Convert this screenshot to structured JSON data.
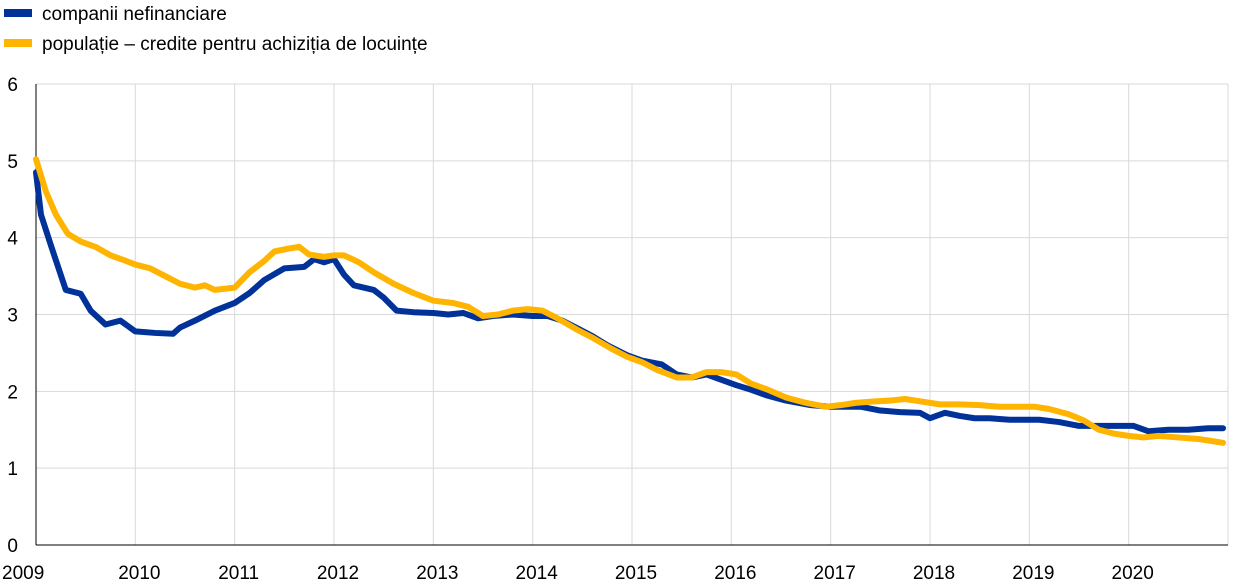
{
  "chart_data": {
    "type": "line",
    "title": "",
    "xlabel": "",
    "ylabel": "",
    "xlim": [
      2009.0,
      2021.0
    ],
    "ylim": [
      0,
      6
    ],
    "grid": true,
    "legend_position": "top-left",
    "x_ticks": [
      {
        "value": 2009,
        "label": "2009"
      },
      {
        "value": 2010,
        "label": "2010"
      },
      {
        "value": 2011,
        "label": "2011"
      },
      {
        "value": 2012,
        "label": "2012"
      },
      {
        "value": 2013,
        "label": "2013"
      },
      {
        "value": 2014,
        "label": "2014"
      },
      {
        "value": 2015,
        "label": "2015"
      },
      {
        "value": 2016,
        "label": "2016"
      },
      {
        "value": 2017,
        "label": "2017"
      },
      {
        "value": 2018,
        "label": "2018"
      },
      {
        "value": 2019,
        "label": "2019"
      },
      {
        "value": 2020,
        "label": "2020"
      }
    ],
    "y_ticks": [
      {
        "value": 0,
        "label": "0"
      },
      {
        "value": 1,
        "label": "1"
      },
      {
        "value": 2,
        "label": "2"
      },
      {
        "value": 3,
        "label": "3"
      },
      {
        "value": 4,
        "label": "4"
      },
      {
        "value": 5,
        "label": "5"
      },
      {
        "value": 6,
        "label": "6"
      }
    ],
    "series": [
      {
        "name": "companii nefinanciare",
        "color": "#003299",
        "points": [
          [
            2009.0,
            4.85
          ],
          [
            2009.05,
            4.3
          ],
          [
            2009.15,
            3.9
          ],
          [
            2009.3,
            3.32
          ],
          [
            2009.45,
            3.27
          ],
          [
            2009.55,
            3.05
          ],
          [
            2009.7,
            2.87
          ],
          [
            2009.85,
            2.92
          ],
          [
            2010.0,
            2.78
          ],
          [
            2010.2,
            2.76
          ],
          [
            2010.38,
            2.75
          ],
          [
            2010.45,
            2.83
          ],
          [
            2010.6,
            2.92
          ],
          [
            2010.8,
            3.05
          ],
          [
            2011.0,
            3.15
          ],
          [
            2011.15,
            3.28
          ],
          [
            2011.3,
            3.45
          ],
          [
            2011.5,
            3.6
          ],
          [
            2011.7,
            3.62
          ],
          [
            2011.8,
            3.72
          ],
          [
            2011.9,
            3.68
          ],
          [
            2012.0,
            3.72
          ],
          [
            2012.1,
            3.52
          ],
          [
            2012.2,
            3.38
          ],
          [
            2012.4,
            3.32
          ],
          [
            2012.5,
            3.22
          ],
          [
            2012.63,
            3.05
          ],
          [
            2012.8,
            3.03
          ],
          [
            2013.0,
            3.02
          ],
          [
            2013.15,
            3.0
          ],
          [
            2013.3,
            3.02
          ],
          [
            2013.45,
            2.95
          ],
          [
            2013.6,
            2.98
          ],
          [
            2013.8,
            3.0
          ],
          [
            2014.0,
            2.98
          ],
          [
            2014.15,
            2.98
          ],
          [
            2014.3,
            2.92
          ],
          [
            2014.45,
            2.82
          ],
          [
            2014.6,
            2.72
          ],
          [
            2014.75,
            2.6
          ],
          [
            2014.95,
            2.47
          ],
          [
            2015.1,
            2.4
          ],
          [
            2015.3,
            2.35
          ],
          [
            2015.45,
            2.22
          ],
          [
            2015.6,
            2.18
          ],
          [
            2015.75,
            2.22
          ],
          [
            2015.9,
            2.15
          ],
          [
            2016.05,
            2.08
          ],
          [
            2016.2,
            2.02
          ],
          [
            2016.35,
            1.95
          ],
          [
            2016.55,
            1.88
          ],
          [
            2016.8,
            1.82
          ],
          [
            2017.0,
            1.8
          ],
          [
            2017.15,
            1.8
          ],
          [
            2017.3,
            1.8
          ],
          [
            2017.5,
            1.75
          ],
          [
            2017.7,
            1.73
          ],
          [
            2017.9,
            1.72
          ],
          [
            2018.0,
            1.65
          ],
          [
            2018.15,
            1.72
          ],
          [
            2018.3,
            1.68
          ],
          [
            2018.45,
            1.65
          ],
          [
            2018.6,
            1.65
          ],
          [
            2018.8,
            1.63
          ],
          [
            2018.95,
            1.63
          ],
          [
            2019.1,
            1.63
          ],
          [
            2019.3,
            1.6
          ],
          [
            2019.5,
            1.55
          ],
          [
            2019.7,
            1.55
          ],
          [
            2019.9,
            1.55
          ],
          [
            2020.05,
            1.55
          ],
          [
            2020.2,
            1.48
          ],
          [
            2020.4,
            1.5
          ],
          [
            2020.6,
            1.5
          ],
          [
            2020.8,
            1.52
          ],
          [
            2020.95,
            1.52
          ]
        ]
      },
      {
        "name": "populație – credite pentru achiziția de locuințe",
        "color": "#ffb400",
        "points": [
          [
            2009.0,
            5.02
          ],
          [
            2009.1,
            4.6
          ],
          [
            2009.2,
            4.3
          ],
          [
            2009.32,
            4.05
          ],
          [
            2009.45,
            3.95
          ],
          [
            2009.6,
            3.88
          ],
          [
            2009.75,
            3.77
          ],
          [
            2009.9,
            3.7
          ],
          [
            2010.0,
            3.65
          ],
          [
            2010.15,
            3.6
          ],
          [
            2010.3,
            3.5
          ],
          [
            2010.45,
            3.4
          ],
          [
            2010.6,
            3.35
          ],
          [
            2010.7,
            3.38
          ],
          [
            2010.8,
            3.32
          ],
          [
            2011.0,
            3.35
          ],
          [
            2011.15,
            3.55
          ],
          [
            2011.3,
            3.7
          ],
          [
            2011.4,
            3.82
          ],
          [
            2011.55,
            3.86
          ],
          [
            2011.65,
            3.88
          ],
          [
            2011.75,
            3.78
          ],
          [
            2011.9,
            3.75
          ],
          [
            2012.0,
            3.77
          ],
          [
            2012.1,
            3.77
          ],
          [
            2012.25,
            3.68
          ],
          [
            2012.4,
            3.55
          ],
          [
            2012.6,
            3.4
          ],
          [
            2012.8,
            3.28
          ],
          [
            2013.0,
            3.18
          ],
          [
            2013.2,
            3.15
          ],
          [
            2013.35,
            3.1
          ],
          [
            2013.5,
            2.98
          ],
          [
            2013.65,
            3.0
          ],
          [
            2013.8,
            3.05
          ],
          [
            2013.95,
            3.07
          ],
          [
            2014.1,
            3.05
          ],
          [
            2014.25,
            2.95
          ],
          [
            2014.45,
            2.8
          ],
          [
            2014.6,
            2.7
          ],
          [
            2014.8,
            2.55
          ],
          [
            2014.95,
            2.45
          ],
          [
            2015.1,
            2.38
          ],
          [
            2015.25,
            2.28
          ],
          [
            2015.45,
            2.18
          ],
          [
            2015.6,
            2.18
          ],
          [
            2015.75,
            2.25
          ],
          [
            2015.9,
            2.25
          ],
          [
            2016.05,
            2.22
          ],
          [
            2016.2,
            2.1
          ],
          [
            2016.35,
            2.03
          ],
          [
            2016.55,
            1.92
          ],
          [
            2016.75,
            1.85
          ],
          [
            2016.95,
            1.8
          ],
          [
            2017.1,
            1.82
          ],
          [
            2017.25,
            1.85
          ],
          [
            2017.45,
            1.87
          ],
          [
            2017.6,
            1.88
          ],
          [
            2017.75,
            1.9
          ],
          [
            2017.9,
            1.87
          ],
          [
            2018.1,
            1.83
          ],
          [
            2018.3,
            1.83
          ],
          [
            2018.5,
            1.82
          ],
          [
            2018.7,
            1.8
          ],
          [
            2018.9,
            1.8
          ],
          [
            2019.05,
            1.8
          ],
          [
            2019.2,
            1.77
          ],
          [
            2019.4,
            1.7
          ],
          [
            2019.55,
            1.62
          ],
          [
            2019.7,
            1.5
          ],
          [
            2019.85,
            1.45
          ],
          [
            2020.0,
            1.42
          ],
          [
            2020.15,
            1.4
          ],
          [
            2020.3,
            1.42
          ],
          [
            2020.5,
            1.4
          ],
          [
            2020.7,
            1.38
          ],
          [
            2020.85,
            1.35
          ],
          [
            2020.95,
            1.33
          ]
        ]
      }
    ]
  }
}
